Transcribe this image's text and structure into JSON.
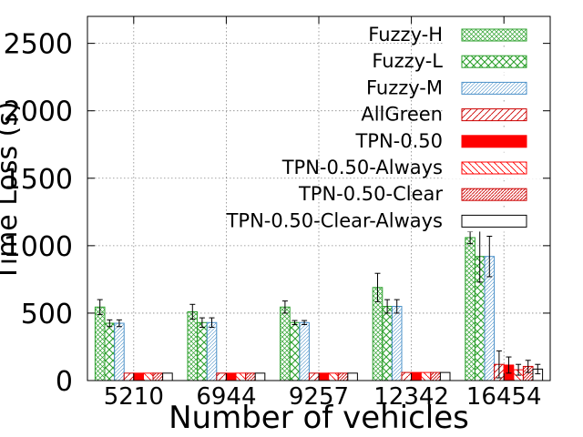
{
  "chart_data": {
    "type": "bar",
    "title": "",
    "xlabel": "Number of vehicles",
    "ylabel": "Time Loss (s)",
    "ylim": [
      0,
      2700
    ],
    "yticks": [
      0,
      500,
      1000,
      1500,
      2000,
      2500
    ],
    "grid": true,
    "legend_position": "top-right",
    "categories": [
      "5210",
      "6944",
      "9257",
      "12342",
      "16454"
    ],
    "series": [
      {
        "name": "Fuzzy-H",
        "color": "#2ca02c",
        "pattern": "cross-fine",
        "values": [
          545,
          510,
          545,
          690,
          1060
        ],
        "errors": [
          55,
          55,
          45,
          105,
          45
        ]
      },
      {
        "name": "Fuzzy-L",
        "color": "#2ca02c",
        "pattern": "cross",
        "values": [
          425,
          430,
          430,
          550,
          920
        ],
        "errors": [
          25,
          35,
          15,
          50,
          190
        ]
      },
      {
        "name": "Fuzzy-M",
        "color": "#4a90c8",
        "pattern": "lines",
        "values": [
          425,
          430,
          430,
          550,
          920
        ],
        "errors": [
          25,
          35,
          15,
          50,
          150
        ]
      },
      {
        "name": "AllGreen",
        "color": "#cc0000",
        "pattern": "diag",
        "values": [
          55,
          55,
          55,
          60,
          120
        ],
        "errors": [
          0,
          0,
          0,
          0,
          100
        ]
      },
      {
        "name": "TPN-0.50",
        "color": "#ff0000",
        "pattern": "solid",
        "values": [
          55,
          55,
          55,
          60,
          115
        ],
        "errors": [
          0,
          0,
          0,
          0,
          60
        ]
      },
      {
        "name": "TPN-0.50-Always",
        "color": "#ff0000",
        "pattern": "diag-back",
        "values": [
          55,
          55,
          55,
          60,
          80
        ],
        "errors": [
          0,
          0,
          0,
          0,
          40
        ]
      },
      {
        "name": "TPN-0.50-Clear",
        "color": "#cc0000",
        "pattern": "diag-dense",
        "values": [
          55,
          55,
          55,
          60,
          105
        ],
        "errors": [
          0,
          0,
          0,
          0,
          45
        ]
      },
      {
        "name": "TPN-0.50-Clear-Always",
        "color": "#000000",
        "pattern": "none",
        "values": [
          55,
          55,
          55,
          60,
          85
        ],
        "errors": [
          0,
          0,
          0,
          0,
          35
        ]
      }
    ]
  }
}
